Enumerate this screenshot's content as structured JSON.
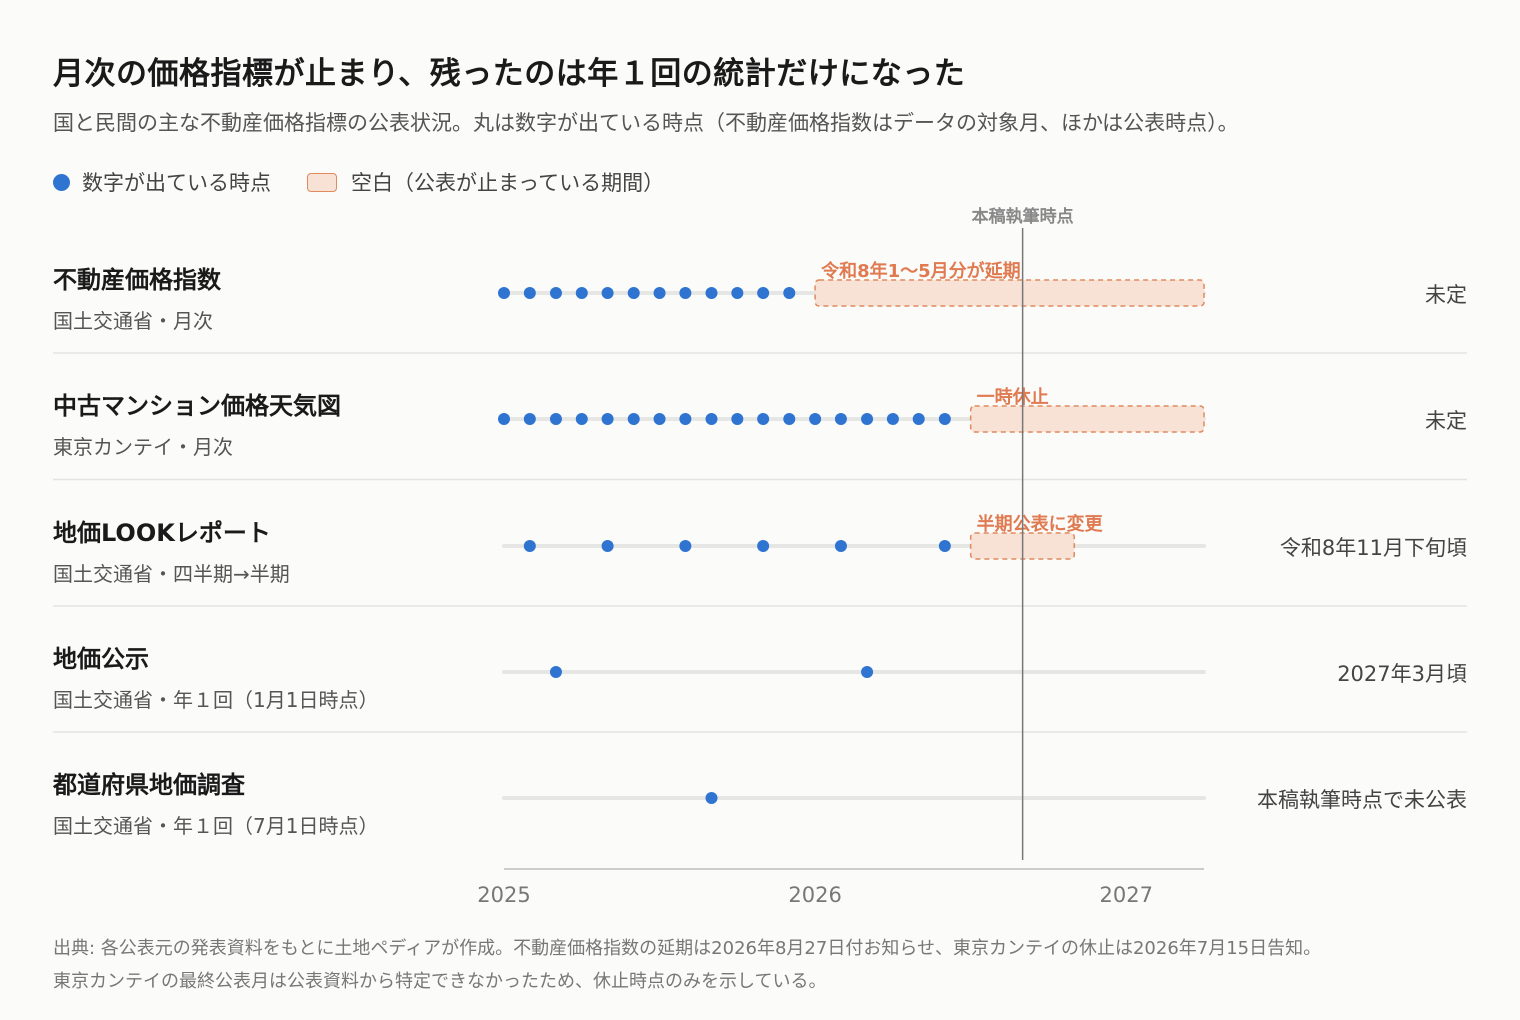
{
  "title": "月次の価格指標が止まり、残ったのは年１回の統計だけになった",
  "subtitle": "国と民間の主な不動産価格指標の公表状況。丸は数字が出ている時点（不動産価格指数はデータの対象月、ほかは公表時点）。",
  "legend": {
    "dot_label": "数字が出ている時点",
    "gap_label": "空白（公表が止まっている期間）"
  },
  "source_lines": [
    "出典: 各公表元の発表資料をもとに土地ペディアが作成。不動産価格指数の延期は2026年8月27日付お知らせ、東京カンテイの休止は2026年7月15日告知。",
    "東京カンテイの最終公表月は公表資料から特定できなかったため、休止時点のみを示している。"
  ],
  "colors": {
    "dot": "#2f74d0",
    "gap_fill": "#f8e2d6",
    "gap_stroke": "#e08a5e",
    "gap_label": "#e07a50",
    "track": "#e6e6e4",
    "now_line": "#777777"
  },
  "chart_data": {
    "type": "scatter",
    "x_axis": {
      "unit": "year",
      "range": [
        2025,
        2027.25
      ],
      "ticks": [
        "2025",
        "2026",
        "2027"
      ],
      "tick_values": [
        2025,
        2026,
        2027
      ]
    },
    "now_marker": {
      "label": "本稿執筆時点",
      "x": 2026.667
    },
    "rows": [
      {
        "name": "不動産価格指数",
        "meta": "国土交通省・月次",
        "next": "未定",
        "points": [
          2025.0,
          2025.083,
          2025.167,
          2025.25,
          2025.333,
          2025.417,
          2025.5,
          2025.583,
          2025.667,
          2025.75,
          2025.833,
          2025.917
        ],
        "gap": {
          "start": 2026.0,
          "end": 2027.25,
          "label": "令和8年1〜5月分が延期"
        }
      },
      {
        "name": "中古マンション価格天気図",
        "meta": "東京カンテイ・月次",
        "next": "未定",
        "points": [
          2025.0,
          2025.083,
          2025.167,
          2025.25,
          2025.333,
          2025.417,
          2025.5,
          2025.583,
          2025.667,
          2025.75,
          2025.833,
          2025.917,
          2026.0,
          2026.083,
          2026.167,
          2026.25,
          2026.333,
          2026.417
        ],
        "gap": {
          "start": 2026.5,
          "end": 2027.25,
          "label": "一時休止"
        }
      },
      {
        "name": "地価LOOKレポート",
        "meta": "国土交通省・四半期→半期",
        "next": "令和8年11月下旬頃",
        "points": [
          2025.083,
          2025.333,
          2025.583,
          2025.833,
          2026.083,
          2026.417
        ],
        "gap": {
          "start": 2026.5,
          "end": 2026.833,
          "label": "半期公表に変更"
        }
      },
      {
        "name": "地価公示",
        "meta": "国土交通省・年１回（1月1日時点）",
        "next": "2027年3月頃",
        "points": [
          2025.167,
          2026.167
        ],
        "gap": null
      },
      {
        "name": "都道府県地価調査",
        "meta": "国土交通省・年１回（7月1日時点）",
        "next": "本稿執筆時点で未公表",
        "points": [
          2025.667
        ],
        "gap": null
      }
    ]
  }
}
